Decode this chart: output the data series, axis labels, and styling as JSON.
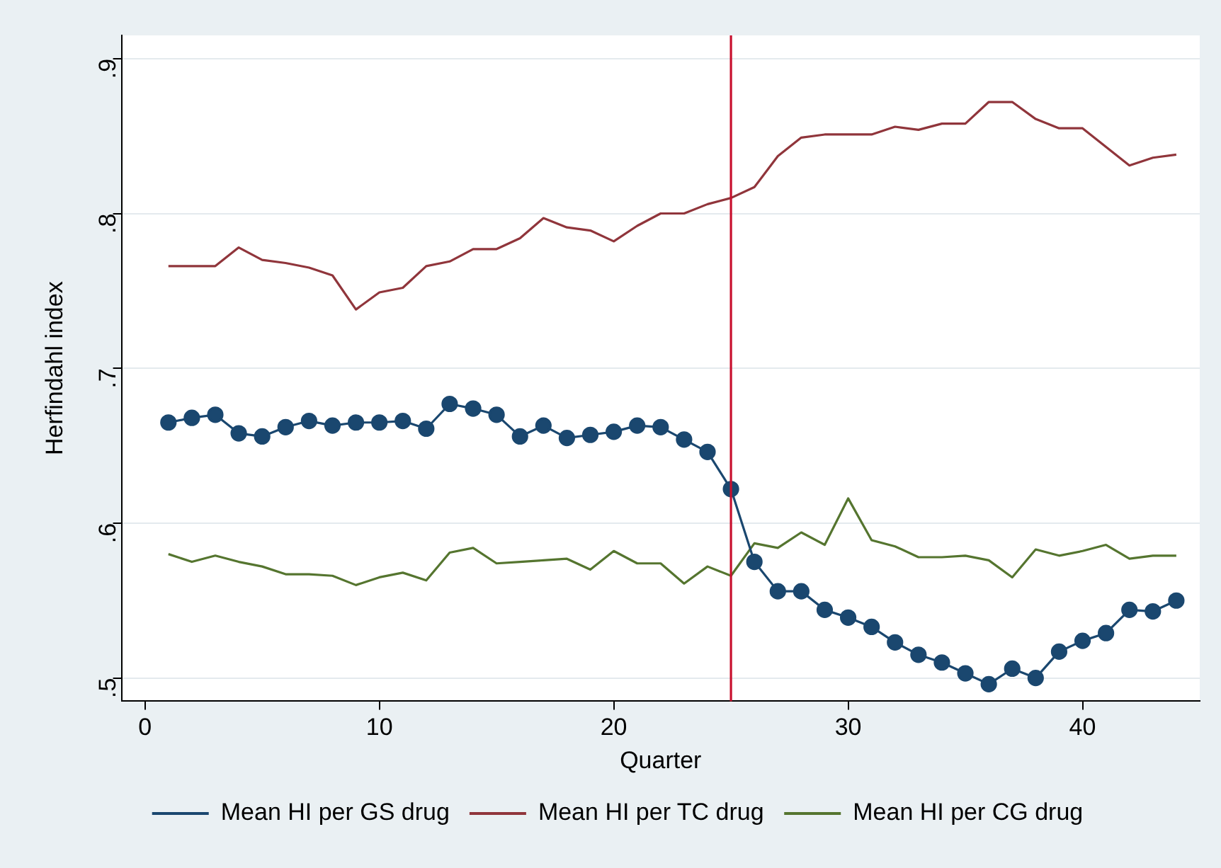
{
  "chart_data": {
    "type": "line",
    "xlabel": "Quarter",
    "ylabel": "Herfindahl index",
    "x": [
      1,
      2,
      3,
      4,
      5,
      6,
      7,
      8,
      9,
      10,
      11,
      12,
      13,
      14,
      15,
      16,
      17,
      18,
      19,
      20,
      21,
      22,
      23,
      24,
      25,
      26,
      27,
      28,
      29,
      30,
      31,
      32,
      33,
      34,
      35,
      36,
      37,
      38,
      39,
      40,
      41,
      42,
      43,
      44
    ],
    "series": [
      {
        "name": "Mean HI per GS drug",
        "color": "#1a476f",
        "marker": "circle",
        "values": [
          0.665,
          0.668,
          0.67,
          0.658,
          0.656,
          0.662,
          0.666,
          0.663,
          0.665,
          0.665,
          0.666,
          0.661,
          0.677,
          0.674,
          0.67,
          0.656,
          0.663,
          0.655,
          0.657,
          0.659,
          0.663,
          0.662,
          0.654,
          0.646,
          0.622,
          0.575,
          0.556,
          0.556,
          0.544,
          0.539,
          0.533,
          0.523,
          0.515,
          0.51,
          0.503,
          0.496,
          0.506,
          0.5,
          0.517,
          0.524,
          0.529,
          0.544,
          0.543,
          0.55
        ]
      },
      {
        "name": "Mean HI per TC drug",
        "color": "#90353b",
        "marker": "none",
        "values": [
          0.766,
          0.766,
          0.766,
          0.778,
          0.77,
          0.768,
          0.765,
          0.76,
          0.738,
          0.749,
          0.752,
          0.766,
          0.769,
          0.777,
          0.777,
          0.784,
          0.797,
          0.791,
          0.789,
          0.782,
          0.792,
          0.8,
          0.8,
          0.806,
          0.81,
          0.817,
          0.837,
          0.849,
          0.851,
          0.851,
          0.851,
          0.856,
          0.854,
          0.858,
          0.858,
          0.872,
          0.872,
          0.861,
          0.855,
          0.855,
          0.843,
          0.831,
          0.836,
          0.838
        ]
      },
      {
        "name": "Mean HI per CG drug",
        "color": "#55752f",
        "marker": "none",
        "values": [
          0.58,
          0.575,
          0.579,
          0.575,
          0.572,
          0.567,
          0.567,
          0.566,
          0.56,
          0.565,
          0.568,
          0.563,
          0.581,
          0.584,
          0.574,
          0.575,
          0.576,
          0.577,
          0.57,
          0.582,
          0.574,
          0.574,
          0.561,
          0.572,
          0.566,
          0.587,
          0.584,
          0.594,
          0.586,
          0.616,
          0.589,
          0.585,
          0.578,
          0.578,
          0.579,
          0.576,
          0.565,
          0.583,
          0.579,
          0.582,
          0.586,
          0.577,
          0.579,
          0.579
        ]
      }
    ],
    "xlim": [
      -1,
      45
    ],
    "xticks": [
      0,
      10,
      20,
      30,
      40
    ],
    "ylim": [
      0.485,
      0.915
    ],
    "yticks": [
      {
        "value": 0.5,
        "label": ".5"
      },
      {
        "value": 0.6,
        "label": ".6"
      },
      {
        "value": 0.7,
        "label": ".7"
      },
      {
        "value": 0.8,
        "label": ".8"
      },
      {
        "value": 0.9,
        "label": ".9"
      }
    ],
    "ref_lines": [
      {
        "axis": "x",
        "value": 25,
        "color": "#c8102e"
      }
    ],
    "grid": "y",
    "legend": "bottom",
    "line_style": "solid"
  }
}
